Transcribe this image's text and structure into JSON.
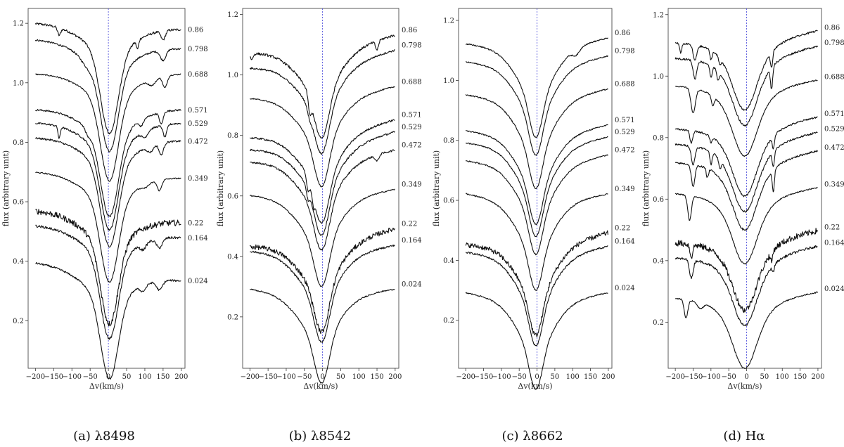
{
  "figure": {
    "line_color": "#111111",
    "rest_line_color": "#5555dd",
    "axis_color": "#333333"
  },
  "chart_data": [
    {
      "type": "line",
      "caption": "(a) λ8498",
      "xlabel": "Δv(km/s)",
      "ylabel": "flux (arbitrary unit)",
      "xlim": [
        -220,
        210
      ],
      "ylim": [
        0.04,
        1.25
      ],
      "xticks": [
        -200,
        -150,
        -100,
        -50,
        0,
        50,
        100,
        150,
        200
      ],
      "xtick_labels": [
        "−200",
        "−150",
        "−100",
        "−50",
        "0",
        "50",
        "100",
        "150",
        "200"
      ],
      "yticks": [
        0.2,
        0.4,
        0.6,
        0.8,
        1.0,
        1.2
      ],
      "ytick_labels": [
        "0.2",
        "0.4",
        "0.6",
        "0.8",
        "1.0",
        "1.2"
      ],
      "rest_line_x": 0,
      "line": {
        "depth": 0.28,
        "width": 24,
        "center": 3,
        "wings": [
          {
            "a": 0.08,
            "mu": 0,
            "sig": 70
          }
        ]
      },
      "series": [
        {
          "name": "0.86",
          "level": 1.19,
          "slope": -0.01,
          "noise": 0.004,
          "dips": [
            [
              -135,
              0.025,
              4
            ],
            [
              80,
              0.03,
              3
            ],
            [
              150,
              0.03,
              6
            ]
          ]
        },
        {
          "name": "0.798",
          "level": 1.13,
          "slope": -0.015,
          "noise": 0.003,
          "dips": [
            [
              -60,
              0.02,
              15
            ],
            [
              150,
              0.035,
              8
            ]
          ]
        },
        {
          "name": "0.688",
          "level": 1.03,
          "slope": 0.0,
          "noise": 0.002,
          "dips": [
            [
              155,
              0.04,
              6
            ],
            [
              120,
              0.02,
              10
            ]
          ]
        },
        {
          "name": "0.571",
          "level": 0.91,
          "slope": 0.0,
          "noise": 0.003,
          "dips": [
            [
              -55,
              0.02,
              8
            ],
            [
              145,
              0.04,
              5
            ],
            [
              90,
              0.02,
              6
            ]
          ]
        },
        {
          "name": "0.529",
          "level": 0.865,
          "slope": 0.0,
          "noise": 0.003,
          "dips": [
            [
              -135,
              0.04,
              3
            ],
            [
              155,
              0.04,
              5
            ],
            [
              100,
              0.02,
              8
            ]
          ]
        },
        {
          "name": "0.472",
          "level": 0.81,
          "slope": -0.005,
          "noise": 0.003,
          "dips": [
            [
              145,
              0.04,
              6
            ],
            [
              115,
              0.02,
              8
            ]
          ]
        },
        {
          "name": "0.349",
          "level": 0.69,
          "slope": -0.01,
          "noise": 0.002,
          "dips": [
            [
              140,
              0.035,
              6
            ],
            [
              100,
              0.01,
              10
            ]
          ]
        },
        {
          "name": "0.22",
          "level": 0.55,
          "slope": -0.02,
          "noise": 0.01,
          "dips": []
        },
        {
          "name": "0.164",
          "level": 0.5,
          "slope": -0.02,
          "noise": 0.004,
          "dips": [
            [
              140,
              0.03,
              8
            ],
            [
              95,
              0.02,
              8
            ]
          ]
        },
        {
          "name": "0.024",
          "level": 0.365,
          "slope": -0.03,
          "noise": 0.003,
          "dips": [
            [
              140,
              0.03,
              8
            ],
            [
              95,
              0.02,
              8
            ]
          ]
        }
      ]
    },
    {
      "type": "line",
      "caption": "(b) λ8542",
      "xlabel": "Δv(km/s)",
      "ylabel": "flux (arbitrary unit)",
      "xlim": [
        -220,
        210
      ],
      "ylim": [
        0.03,
        1.22
      ],
      "xticks": [
        -200,
        -150,
        -100,
        -50,
        0,
        50,
        100,
        150,
        200
      ],
      "xtick_labels": [
        "−200",
        "−150",
        "−100",
        "−50",
        "0",
        "50",
        "100",
        "150",
        "200"
      ],
      "yticks": [
        0.2,
        0.4,
        0.6,
        0.8,
        1.0,
        1.2
      ],
      "ytick_labels": [
        "0.2",
        "0.4",
        "0.6",
        "0.8",
        "1.0",
        "1.2"
      ],
      "rest_line_x": 0,
      "line": {
        "depth": 0.16,
        "width": 20,
        "center": -2,
        "wings": [
          {
            "a": 0.12,
            "mu": -10,
            "sig": 55
          },
          {
            "a": 0.05,
            "mu": 0,
            "sig": 140
          }
        ]
      },
      "series": [
        {
          "name": "0.86",
          "level": 1.12,
          "slope": 0.03,
          "noise": 0.004,
          "dips": [
            [
              -195,
              0.02,
              4
            ],
            [
              -35,
              0.05,
              4
            ],
            [
              150,
              0.03,
              4
            ]
          ]
        },
        {
          "name": "0.798",
          "level": 1.07,
          "slope": 0.03,
          "noise": 0.003,
          "dips": [
            [
              -35,
              0.02,
              6
            ]
          ]
        },
        {
          "name": "0.688",
          "level": 0.96,
          "slope": 0.02,
          "noise": 0.002,
          "dips": []
        },
        {
          "name": "0.571",
          "level": 0.84,
          "slope": 0.03,
          "noise": 0.003,
          "dips": [
            [
              -40,
              0.04,
              4
            ],
            [
              -25,
              0.03,
              3
            ]
          ]
        },
        {
          "name": "0.529",
          "level": 0.8,
          "slope": 0.03,
          "noise": 0.003,
          "dips": [
            [
              -40,
              0.03,
              4
            ]
          ]
        },
        {
          "name": "0.472",
          "level": 0.75,
          "slope": 0.02,
          "noise": 0.003,
          "dips": [
            [
              150,
              0.02,
              5
            ]
          ]
        },
        {
          "name": "0.349",
          "level": 0.63,
          "slope": 0.01,
          "noise": 0.002,
          "dips": []
        },
        {
          "name": "0.22",
          "level": 0.48,
          "slope": 0.03,
          "noise": 0.008,
          "dips": []
        },
        {
          "name": "0.164",
          "level": 0.445,
          "slope": 0.01,
          "noise": 0.003,
          "dips": []
        },
        {
          "name": "0.024",
          "level": 0.31,
          "slope": 0.0,
          "noise": 0.002,
          "dips": []
        }
      ]
    },
    {
      "type": "line",
      "caption": "(c) λ8662",
      "xlabel": "Δv(km/s)",
      "ylabel": "flux (arbitrary unit)",
      "xlim": [
        -220,
        210
      ],
      "ylim": [
        0.04,
        1.24
      ],
      "xticks": [
        -200,
        -150,
        -100,
        -50,
        0,
        50,
        100,
        150,
        200
      ],
      "xtick_labels": [
        "−200",
        "−150",
        "−100",
        "−50",
        "0",
        "50",
        "100",
        "150",
        "200"
      ],
      "yticks": [
        0.2,
        0.4,
        0.6,
        0.8,
        1.0,
        1.2
      ],
      "ytick_labels": [
        "0.2",
        "0.4",
        "0.6",
        "0.8",
        "1.0",
        "1.2"
      ],
      "rest_line_x": 0,
      "line": {
        "depth": 0.14,
        "width": 18,
        "center": -3,
        "wings": [
          {
            "a": 0.14,
            "mu": -5,
            "sig": 50
          },
          {
            "a": 0.06,
            "mu": 0,
            "sig": 130
          }
        ]
      },
      "series": [
        {
          "name": "0.86",
          "level": 1.15,
          "slope": 0.01,
          "noise": 0.002,
          "dips": [
            [
              110,
              0.02,
              10
            ]
          ]
        },
        {
          "name": "0.798",
          "level": 1.09,
          "slope": 0.01,
          "noise": 0.002,
          "dips": []
        },
        {
          "name": "0.688",
          "level": 0.98,
          "slope": 0.01,
          "noise": 0.002,
          "dips": []
        },
        {
          "name": "0.571",
          "level": 0.86,
          "slope": 0.01,
          "noise": 0.002,
          "dips": []
        },
        {
          "name": "0.529",
          "level": 0.82,
          "slope": 0.01,
          "noise": 0.002,
          "dips": []
        },
        {
          "name": "0.472",
          "level": 0.76,
          "slope": 0.01,
          "noise": 0.002,
          "dips": []
        },
        {
          "name": "0.349",
          "level": 0.64,
          "slope": 0.0,
          "noise": 0.002,
          "dips": []
        },
        {
          "name": "0.22",
          "level": 0.49,
          "slope": 0.02,
          "noise": 0.008,
          "dips": []
        },
        {
          "name": "0.164",
          "level": 0.455,
          "slope": 0.01,
          "noise": 0.003,
          "dips": []
        },
        {
          "name": "0.024",
          "level": 0.31,
          "slope": 0.0,
          "noise": 0.002,
          "dips": []
        }
      ]
    },
    {
      "type": "line",
      "caption": "(d) Hα",
      "xlabel": "Δv(km/s)",
      "ylabel": "flux (arbitrary unit)",
      "xlim": [
        -220,
        210
      ],
      "ylim": [
        0.05,
        1.22
      ],
      "xticks": [
        -200,
        -150,
        -100,
        -50,
        0,
        50,
        100,
        150,
        200
      ],
      "xtick_labels": [
        "−200",
        "−150",
        "−100",
        "−50",
        "0",
        "50",
        "100",
        "150",
        "200"
      ],
      "yticks": [
        0.2,
        0.4,
        0.6,
        0.8,
        1.0,
        1.2
      ],
      "ytick_labels": [
        "0.2",
        "0.4",
        "0.6",
        "0.8",
        "1.0",
        "1.2"
      ],
      "rest_line_x": 0,
      "line": {
        "depth": 0.1,
        "width": 28,
        "center": -5,
        "wings": [
          {
            "a": 0.1,
            "mu": -5,
            "sig": 45
          },
          {
            "a": 0.05,
            "mu": 0,
            "sig": 120
          }
        ]
      },
      "series": [
        {
          "name": "0.86",
          "level": 1.14,
          "slope": 0.02,
          "noise": 0.003,
          "dips": [
            [
              -185,
              0.03,
              3
            ],
            [
              -145,
              0.05,
              5
            ],
            [
              -100,
              0.03,
              3
            ],
            [
              -75,
              0.02,
              3
            ],
            [
              70,
              0.05,
              3
            ]
          ]
        },
        {
          "name": "0.798",
          "level": 1.09,
          "slope": 0.02,
          "noise": 0.003,
          "dips": [
            [
              -145,
              0.06,
              5
            ],
            [
              -100,
              0.04,
              3
            ],
            [
              -80,
              0.03,
              3
            ],
            [
              70,
              0.07,
              3
            ]
          ]
        },
        {
          "name": "0.688",
          "level": 0.99,
          "slope": 0.01,
          "noise": 0.002,
          "dips": [
            [
              -150,
              0.08,
              6
            ],
            [
              -95,
              0.03,
              4
            ]
          ]
        },
        {
          "name": "0.571",
          "level": 0.86,
          "slope": 0.02,
          "noise": 0.003,
          "dips": [
            [
              -155,
              0.04,
              4
            ],
            [
              -100,
              0.02,
              3
            ],
            [
              75,
              0.04,
              3
            ]
          ]
        },
        {
          "name": "0.529",
          "level": 0.81,
          "slope": 0.02,
          "noise": 0.003,
          "dips": [
            [
              -150,
              0.06,
              5
            ],
            [
              -100,
              0.04,
              3
            ],
            [
              -75,
              0.03,
              3
            ],
            [
              75,
              0.05,
              3
            ]
          ]
        },
        {
          "name": "0.472",
          "level": 0.75,
          "slope": 0.02,
          "noise": 0.003,
          "dips": [
            [
              -150,
              0.07,
              5
            ],
            [
              -110,
              0.03,
              3
            ],
            [
              75,
              0.07,
              3
            ]
          ]
        },
        {
          "name": "0.349",
          "level": 0.64,
          "slope": 0.01,
          "noise": 0.002,
          "dips": [
            [
              -160,
              0.08,
              5
            ]
          ]
        },
        {
          "name": "0.22",
          "level": 0.49,
          "slope": 0.02,
          "noise": 0.01,
          "dips": [
            [
              -155,
              0.04,
              4
            ],
            [
              70,
              0.03,
              3
            ]
          ]
        },
        {
          "name": "0.164",
          "level": 0.44,
          "slope": 0.02,
          "noise": 0.004,
          "dips": [
            [
              -155,
              0.06,
              5
            ],
            [
              75,
              0.02,
              3
            ]
          ]
        },
        {
          "name": "0.024",
          "level": 0.3,
          "slope": 0.01,
          "noise": 0.002,
          "dips": [
            [
              -170,
              0.06,
              5
            ],
            [
              -130,
              0.02,
              8
            ]
          ]
        }
      ]
    }
  ]
}
